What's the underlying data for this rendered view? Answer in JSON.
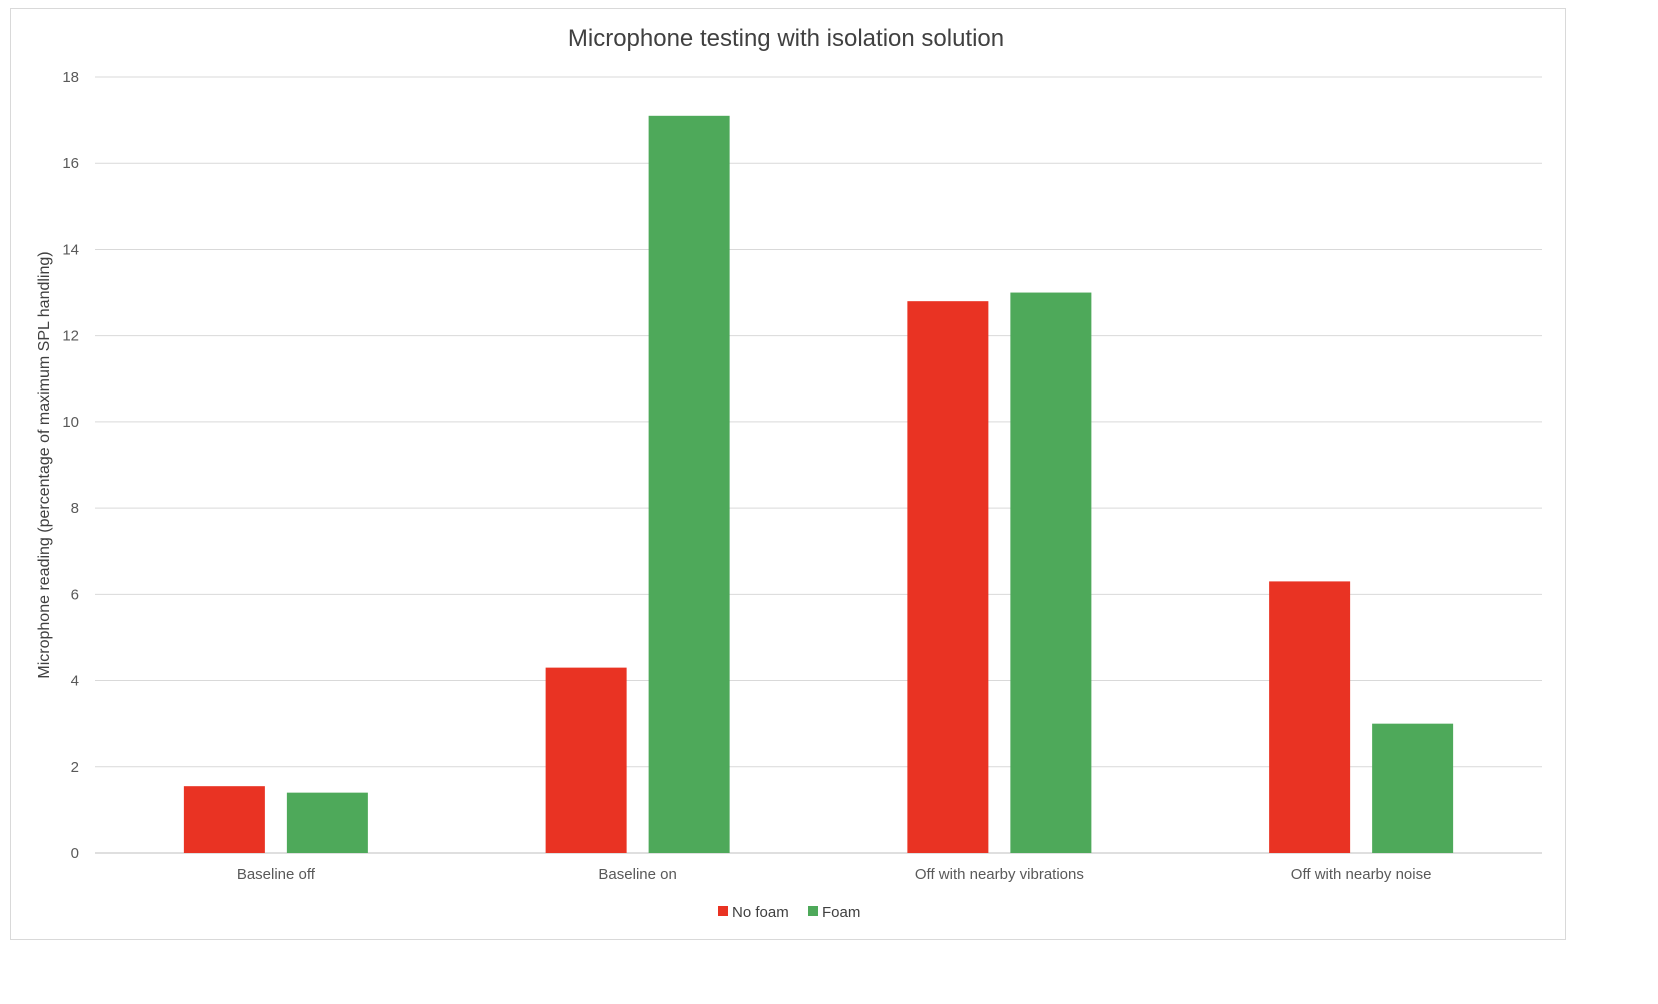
{
  "chart_data": {
    "type": "bar",
    "title": "Microphone testing with isolation solution",
    "xlabel": "",
    "ylabel": "Microphone reading (percentage of maximum SPL handling)",
    "ylim": [
      0,
      18
    ],
    "yticks": [
      "0",
      "2",
      "4",
      "6",
      "8",
      "10",
      "12",
      "14",
      "16",
      "18"
    ],
    "grid": true,
    "legend_position": "bottom",
    "categories": [
      "Baseline off",
      "Baseline on",
      "Off with nearby vibrations",
      "Off with nearby noise"
    ],
    "series": [
      {
        "name": "No foam",
        "color": "#e93323",
        "values": [
          1.55,
          4.3,
          12.8,
          6.3
        ]
      },
      {
        "name": "Foam",
        "color": "#4ea95a",
        "values": [
          1.4,
          17.1,
          13.0,
          3.0
        ]
      }
    ]
  }
}
